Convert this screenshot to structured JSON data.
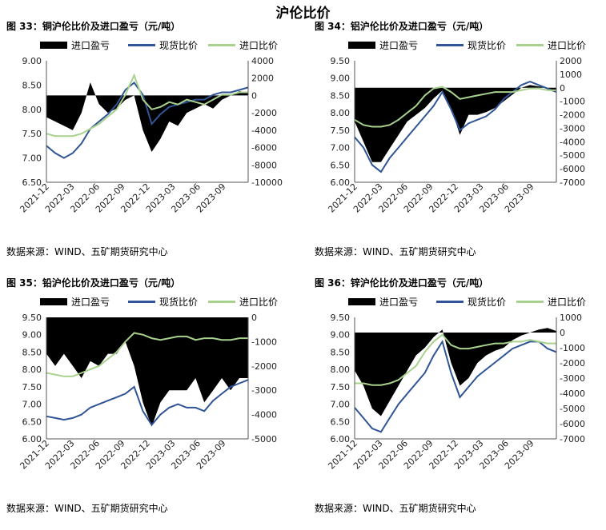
{
  "page_title": "沪伦比价",
  "charts": [
    {
      "fig_title": "图 33：铜沪伦比价及进口盈亏（元/吨）",
      "legend": [
        "进口盈亏",
        "现货比价",
        "进口比价"
      ],
      "source": "数据来源：WIND、五矿期货研究中心",
      "y_left": {
        "min": 6.5,
        "max": 9.0,
        "ticks": [
          "6.50",
          "7.00",
          "7.50",
          "8.00",
          "8.50",
          "9.00"
        ]
      },
      "y_right": {
        "min": -10000,
        "max": 4000,
        "ticks": [
          "-10000",
          "-8000",
          "-6000",
          "-4000",
          "-2000",
          "0",
          "2000",
          "4000"
        ]
      },
      "x_ticks": [
        "2021-12",
        "2022-03",
        "2022-06",
        "2022-09",
        "2022-12",
        "2023-03",
        "2023-06",
        "2023-09"
      ]
    },
    {
      "fig_title": "图 34：铝沪伦比价及进口盈亏（元/吨）",
      "legend": [
        "进口盈亏",
        "现货比价",
        "进口比价"
      ],
      "source": "数据来源：WIND、五矿期货研究中心",
      "y_left": {
        "min": 6.0,
        "max": 9.5,
        "ticks": [
          "6.00",
          "6.50",
          "7.00",
          "7.50",
          "8.00",
          "8.50",
          "9.00",
          "9.50"
        ]
      },
      "y_right": {
        "min": -7000,
        "max": 2000,
        "ticks": [
          "-7000",
          "-6000",
          "-5000",
          "-4000",
          "-3000",
          "-2000",
          "-1000",
          "0",
          "1000",
          "2000"
        ]
      },
      "x_ticks": [
        "2021-12",
        "2022-03",
        "2022-06",
        "2022-09",
        "2022-12",
        "2023-03",
        "2023-06",
        "2023-09"
      ]
    },
    {
      "fig_title": "图 35：铅沪伦比价及进口盈亏（元/吨）",
      "legend": [
        "进口盈亏",
        "现货比价",
        "进口比价"
      ],
      "source": "数据来源：WIND、五矿期货研究中心",
      "y_left": {
        "min": 6.0,
        "max": 9.5,
        "ticks": [
          "6.00",
          "6.50",
          "7.00",
          "7.50",
          "8.00",
          "8.50",
          "9.00",
          "9.50"
        ]
      },
      "y_right": {
        "min": -5000,
        "max": 0,
        "ticks": [
          "-5000",
          "-4000",
          "-3000",
          "-2000",
          "-1000",
          "0"
        ]
      },
      "x_ticks": [
        "2021-12",
        "2022-03",
        "2022-06",
        "2022-09",
        "2022-12",
        "2023-03",
        "2023-06",
        "2023-09"
      ]
    },
    {
      "fig_title": "图 36：锌沪伦比价及进口盈亏（元/吨）",
      "legend": [
        "进口盈亏",
        "现货比价",
        "进口比价"
      ],
      "source": "数据来源：WIND、五矿期货研究中心",
      "y_left": {
        "min": 6.0,
        "max": 9.5,
        "ticks": [
          "6.00",
          "6.50",
          "7.00",
          "7.50",
          "8.00",
          "8.50",
          "9.00",
          "9.50"
        ]
      },
      "y_right": {
        "min": -7000,
        "max": 1000,
        "ticks": [
          "-7000",
          "-6000",
          "-5000",
          "-4000",
          "-3000",
          "-2000",
          "-1000",
          "0",
          "1000"
        ]
      },
      "x_ticks": [
        "2021-12",
        "2022-03",
        "2022-06",
        "2022-09",
        "2022-12",
        "2023-03",
        "2023-06",
        "2023-09"
      ]
    }
  ],
  "colors": {
    "profit": "#000000",
    "spot": "#2f5597",
    "import": "#a9d18e"
  },
  "chart_data": [
    {
      "type": "line",
      "x": [
        "2021-12",
        "2022-01",
        "2022-02",
        "2022-03",
        "2022-04",
        "2022-05",
        "2022-06",
        "2022-07",
        "2022-08",
        "2022-09",
        "2022-10",
        "2022-11",
        "2022-12",
        "2023-01",
        "2023-02",
        "2023-03",
        "2023-04",
        "2023-05",
        "2023-06",
        "2023-07",
        "2023-08",
        "2023-09",
        "2023-10",
        "2023-11"
      ],
      "series": [
        {
          "name": "进口盈亏",
          "axis": "right",
          "kind": "area",
          "values": [
            -2500,
            -3000,
            -3500,
            -4000,
            -2000,
            1500,
            -1000,
            -2000,
            -1500,
            -500,
            0,
            -4000,
            -6500,
            -5000,
            -3000,
            -3500,
            -2000,
            -1500,
            -1000,
            -1500,
            -500,
            0,
            500,
            300
          ]
        },
        {
          "name": "现货比价",
          "axis": "left",
          "values": [
            7.25,
            7.1,
            7.0,
            7.1,
            7.3,
            7.6,
            7.75,
            7.9,
            8.1,
            8.4,
            8.55,
            8.3,
            7.7,
            7.9,
            8.05,
            8.1,
            8.15,
            8.2,
            8.2,
            8.3,
            8.35,
            8.35,
            8.4,
            8.45
          ]
        },
        {
          "name": "进口比价",
          "axis": "left",
          "values": [
            7.5,
            7.45,
            7.45,
            7.45,
            7.5,
            7.6,
            7.7,
            7.85,
            8.0,
            8.3,
            8.7,
            8.2,
            8.0,
            8.05,
            8.15,
            8.1,
            8.2,
            8.15,
            8.1,
            8.2,
            8.3,
            8.3,
            8.35,
            8.35
          ]
        }
      ]
    },
    {
      "type": "line",
      "x": [
        "2021-12",
        "2022-01",
        "2022-02",
        "2022-03",
        "2022-04",
        "2022-05",
        "2022-06",
        "2022-07",
        "2022-08",
        "2022-09",
        "2022-10",
        "2022-11",
        "2022-12",
        "2023-01",
        "2023-02",
        "2023-03",
        "2023-04",
        "2023-05",
        "2023-06",
        "2023-07",
        "2023-08",
        "2023-09",
        "2023-10",
        "2023-11"
      ],
      "series": [
        {
          "name": "进口盈亏",
          "axis": "right",
          "kind": "area",
          "values": [
            -2500,
            -4000,
            -5500,
            -5500,
            -4500,
            -3500,
            -2500,
            -2000,
            -1500,
            -800,
            -200,
            -1500,
            -3500,
            -2000,
            -2000,
            -1800,
            -1500,
            -1000,
            -500,
            0,
            200,
            100,
            0,
            -300
          ]
        },
        {
          "name": "现货比价",
          "axis": "left",
          "values": [
            7.3,
            7.0,
            6.5,
            6.3,
            6.7,
            7.0,
            7.3,
            7.6,
            7.9,
            8.2,
            8.6,
            8.1,
            7.5,
            7.7,
            7.8,
            7.9,
            8.1,
            8.4,
            8.6,
            8.8,
            8.9,
            8.8,
            8.7,
            8.6
          ]
        },
        {
          "name": "进口比价",
          "axis": "left",
          "values": [
            7.8,
            7.65,
            7.6,
            7.6,
            7.65,
            7.8,
            8.0,
            8.2,
            8.5,
            8.7,
            8.75,
            8.6,
            8.4,
            8.45,
            8.5,
            8.55,
            8.6,
            8.6,
            8.6,
            8.65,
            8.7,
            8.7,
            8.65,
            8.65
          ]
        }
      ]
    },
    {
      "type": "line",
      "x": [
        "2021-12",
        "2022-01",
        "2022-02",
        "2022-03",
        "2022-04",
        "2022-05",
        "2022-06",
        "2022-07",
        "2022-08",
        "2022-09",
        "2022-10",
        "2022-11",
        "2022-12",
        "2023-01",
        "2023-02",
        "2023-03",
        "2023-04",
        "2023-05",
        "2023-06",
        "2023-07",
        "2023-08",
        "2023-09",
        "2023-10",
        "2023-11"
      ],
      "series": [
        {
          "name": "进口盈亏",
          "axis": "right",
          "kind": "area",
          "values": [
            -1500,
            -2000,
            -1500,
            -2000,
            -2500,
            -1800,
            -2000,
            -1500,
            -1500,
            -1000,
            -2000,
            -3500,
            -4500,
            -3500,
            -3000,
            -3000,
            -3000,
            -2500,
            -3500,
            -3000,
            -2500,
            -3000,
            -2500,
            -2500
          ]
        },
        {
          "name": "现货比价",
          "axis": "left",
          "values": [
            6.65,
            6.6,
            6.55,
            6.6,
            6.7,
            6.9,
            7.0,
            7.1,
            7.2,
            7.3,
            7.5,
            6.8,
            6.4,
            6.7,
            6.9,
            7.0,
            6.9,
            6.9,
            6.8,
            7.1,
            7.3,
            7.5,
            7.6,
            7.7
          ]
        },
        {
          "name": "进口比价",
          "axis": "left",
          "values": [
            7.9,
            7.85,
            7.8,
            7.8,
            7.9,
            8.0,
            8.1,
            8.3,
            8.5,
            8.8,
            9.05,
            9.0,
            8.9,
            8.85,
            8.9,
            8.95,
            8.95,
            8.85,
            8.9,
            8.9,
            8.85,
            8.85,
            8.9,
            8.9
          ]
        }
      ]
    },
    {
      "type": "line",
      "x": [
        "2021-12",
        "2022-01",
        "2022-02",
        "2022-03",
        "2022-04",
        "2022-05",
        "2022-06",
        "2022-07",
        "2022-08",
        "2022-09",
        "2022-10",
        "2022-11",
        "2022-12",
        "2023-01",
        "2023-02",
        "2023-03",
        "2023-04",
        "2023-05",
        "2023-06",
        "2023-07",
        "2023-08",
        "2023-09",
        "2023-10",
        "2023-11"
      ],
      "series": [
        {
          "name": "进口盈亏",
          "axis": "right",
          "kind": "area",
          "values": [
            -2500,
            -3500,
            -5000,
            -5500,
            -4500,
            -3500,
            -2500,
            -1500,
            -1000,
            -300,
            200,
            -2000,
            -3500,
            -3000,
            -2000,
            -1500,
            -1200,
            -1000,
            -500,
            -200,
            0,
            200,
            300,
            100
          ]
        },
        {
          "name": "现货比价",
          "axis": "left",
          "values": [
            6.9,
            6.6,
            6.3,
            6.2,
            6.6,
            7.0,
            7.3,
            7.6,
            7.9,
            8.4,
            8.8,
            7.9,
            7.2,
            7.5,
            7.8,
            8.0,
            8.2,
            8.4,
            8.6,
            8.7,
            8.8,
            8.8,
            8.6,
            8.5
          ]
        },
        {
          "name": "进口比价",
          "axis": "left",
          "values": [
            7.6,
            7.6,
            7.55,
            7.55,
            7.6,
            7.7,
            7.9,
            8.1,
            8.5,
            8.8,
            9.0,
            8.7,
            8.6,
            8.6,
            8.65,
            8.7,
            8.75,
            8.75,
            8.8,
            8.8,
            8.85,
            8.8,
            8.75,
            8.75
          ]
        }
      ]
    }
  ]
}
